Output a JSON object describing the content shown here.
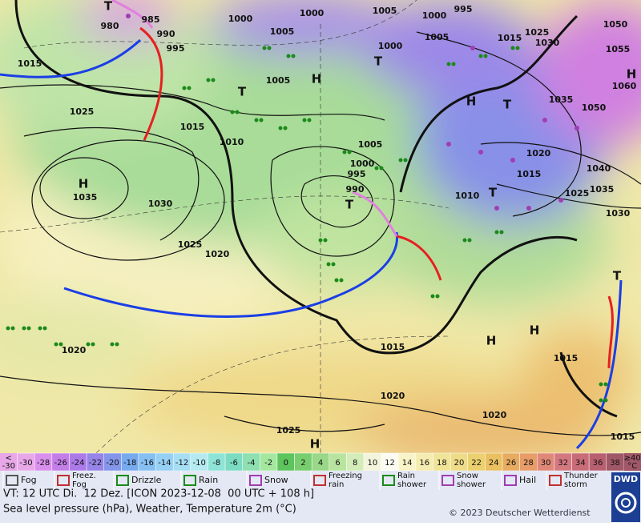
{
  "map": {
    "isobar_labels": [
      985,
      980,
      990,
      995,
      1000,
      1005,
      1000,
      1005,
      1000,
      995,
      1005,
      1000,
      1015,
      1025,
      1030,
      1050,
      1055,
      1060,
      1015,
      1025,
      1005,
      1035,
      1050,
      1015,
      1010,
      1005,
      1000,
      995,
      990,
      1020,
      1015,
      1040,
      1035,
      1025,
      1030,
      1010,
      1035,
      1030,
      1025,
      1020,
      1015,
      1020,
      1015,
      1020,
      1020,
      1025,
      1015
    ],
    "pressure_centers": [
      "T",
      "T",
      "H",
      "T",
      "H",
      "T",
      "H",
      "T",
      "T",
      "H",
      "T",
      "H",
      "H",
      "H"
    ]
  },
  "color_scale": {
    "first_cell": [
      "<",
      "-30"
    ],
    "values": [
      -30,
      -28,
      -26,
      -24,
      -22,
      -20,
      -18,
      -16,
      -14,
      -12,
      -10,
      -8,
      -6,
      -4,
      -2,
      0,
      2,
      4,
      6,
      8,
      10,
      12,
      14,
      16,
      18,
      20,
      22,
      24,
      26,
      28,
      30,
      32,
      34,
      36,
      38
    ],
    "colors": [
      "#e8a8e8",
      "#d890ec",
      "#c47ee8",
      "#ac7ae8",
      "#9684e8",
      "#8496ea",
      "#78aaee",
      "#86c0f2",
      "#96d0f4",
      "#a6def4",
      "#b4eaf0",
      "#8ee4d6",
      "#7cdcc2",
      "#8ee0b0",
      "#a4e8a0",
      "#5ec45e",
      "#78ce6e",
      "#98d888",
      "#b8e4a0",
      "#d4ecb8",
      "#f2f4dc",
      "#fbfbf2",
      "#f8f4c8",
      "#f4ecb0",
      "#f0e498",
      "#eedc88",
      "#ecd070",
      "#eac060",
      "#e8ac60",
      "#e89c68",
      "#e08878",
      "#d47880",
      "#c86c78",
      "#b86070",
      "#a05868"
    ],
    "last_cell": [
      "≥40",
      "°C"
    ]
  },
  "legend": [
    "Fog",
    "Freez.\nFog",
    "Drizzle",
    "Rain",
    "Snow",
    "Freezing\nrain",
    "Rain\nshower",
    "Snow\nshower",
    "Hail",
    "Thunder\nstorm"
  ],
  "footer": {
    "valid_time": "VT: 12 UTC Di.  12 Dez. [ICON 2023-12-08  00 UTC + 108 h]",
    "description": "Sea level pressure (hPa), Weather, Temperature 2m (°C)",
    "copyright": "© 2023 Deutscher Wetterdienst",
    "logo": "DWD"
  }
}
